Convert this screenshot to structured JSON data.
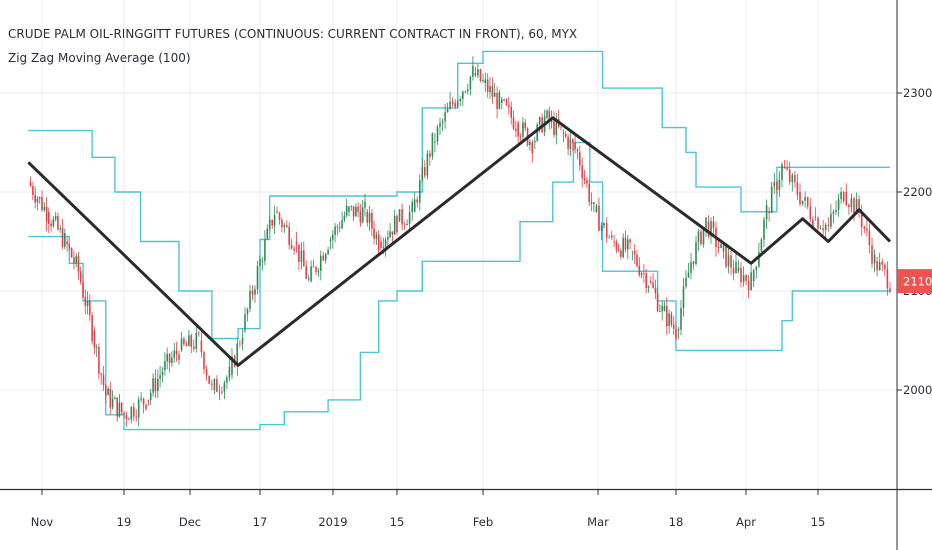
{
  "header": {
    "title": "CRUDE PALM OIL-RINGGITT FUTURES (CONTINUOUS: CURRENT CONTRACT IN FRONT), 60, MYX",
    "indicator": "Zig Zag Moving Average (100)"
  },
  "colors": {
    "background": "#ffffff",
    "grid": "#e9ecef",
    "band": "#4fc3d6",
    "zigzag": "#2b2b2b",
    "candle_up": "#2e8b57",
    "candle_down": "#e0404a",
    "price_tag": "#ef5350",
    "axis": "#2a2e39"
  },
  "chart_data": {
    "type": "line",
    "x_ticks": [
      "Nov",
      "19",
      "Dec",
      "17",
      "2019",
      "15",
      "Feb",
      "Mar",
      "18",
      "Apr",
      "15"
    ],
    "y_ticks": [
      2000,
      2100,
      2200,
      2300
    ],
    "ylim": [
      1940,
      2375
    ],
    "current_price": 2110,
    "current_price_label": "2110",
    "grid": true,
    "series": [
      {
        "kind": "zigzag",
        "points": [
          [
            "Oct 29",
            2230
          ],
          [
            "Dec 12",
            2025
          ],
          [
            "Feb 18",
            2275
          ],
          [
            "Apr 2",
            2128
          ],
          [
            "Apr 12",
            2173
          ],
          [
            "Apr 17",
            2150
          ],
          [
            "Apr 23",
            2182
          ],
          [
            "Apr 29",
            2150
          ]
        ]
      },
      {
        "kind": "upper_band",
        "points": [
          [
            "Oct 29",
            2262
          ],
          [
            "Nov 10",
            2262
          ],
          [
            "Nov 12",
            2235
          ],
          [
            "Nov 17",
            2200
          ],
          [
            "Nov 22",
            2150
          ],
          [
            "Nov 29",
            2100
          ],
          [
            "Dec 6",
            2052
          ],
          [
            "Dec 12",
            2062
          ],
          [
            "Dec 17",
            2152
          ],
          [
            "Dec 19",
            2196
          ],
          [
            "Dec 31",
            2196
          ],
          [
            "Jan 8",
            2196
          ],
          [
            "Jan 15",
            2200
          ],
          [
            "Jan 20",
            2285
          ],
          [
            "Jan 27",
            2330
          ],
          [
            "Feb 1",
            2342
          ],
          [
            "Feb 18",
            2342
          ],
          [
            "Feb 27",
            2342
          ],
          [
            "Mar 2",
            2305
          ],
          [
            "Mar 10",
            2305
          ],
          [
            "Mar 15",
            2265
          ],
          [
            "Mar 20",
            2240
          ],
          [
            "Mar 22",
            2205
          ],
          [
            "Mar 27",
            2205
          ],
          [
            "Mar 31",
            2180
          ],
          [
            "Apr 3",
            2180
          ],
          [
            "Apr 7",
            2225
          ],
          [
            "Apr 29",
            2225
          ]
        ]
      },
      {
        "kind": "lower_band",
        "points": [
          [
            "Oct 29",
            2155
          ],
          [
            "Nov 7",
            2128
          ],
          [
            "Nov 10",
            2090
          ],
          [
            "Nov 15",
            1975
          ],
          [
            "Nov 19",
            1960
          ],
          [
            "Dec 12",
            1960
          ],
          [
            "Dec 17",
            1965
          ],
          [
            "Dec 22",
            1978
          ],
          [
            "Dec 31",
            1990
          ],
          [
            "Jan 7",
            2038
          ],
          [
            "Jan 11",
            2090
          ],
          [
            "Jan 15",
            2100
          ],
          [
            "Jan 20",
            2130
          ],
          [
            "Jan 29",
            2130
          ],
          [
            "Feb 10",
            2170
          ],
          [
            "Feb 18",
            2210
          ],
          [
            "Feb 23",
            2250
          ],
          [
            "Feb 27",
            2210
          ],
          [
            "Mar 2",
            2120
          ],
          [
            "Mar 10",
            2120
          ],
          [
            "Mar 14",
            2090
          ],
          [
            "Mar 18",
            2040
          ],
          [
            "Apr 5",
            2040
          ],
          [
            "Apr 8",
            2070
          ],
          [
            "Apr 10",
            2100
          ],
          [
            "Apr 27",
            2100
          ],
          [
            "Apr 29",
            2098
          ]
        ]
      },
      {
        "kind": "price",
        "points": [
          [
            "Oct 29",
            2210
          ],
          [
            "Nov 2",
            2180
          ],
          [
            "Nov 6",
            2150
          ],
          [
            "Nov 9",
            2120
          ],
          [
            "Nov 12",
            2060
          ],
          [
            "Nov 15",
            1995
          ],
          [
            "Nov 19",
            1975
          ],
          [
            "Nov 23",
            1990
          ],
          [
            "Nov 26",
            2020
          ],
          [
            "Nov 29",
            2040
          ],
          [
            "Dec 3",
            2050
          ],
          [
            "Dec 6",
            2000
          ],
          [
            "Dec 10",
            2015
          ],
          [
            "Dec 13",
            2060
          ],
          [
            "Dec 17",
            2130
          ],
          [
            "Dec 20",
            2180
          ],
          [
            "Dec 24",
            2150
          ],
          [
            "Dec 27",
            2110
          ],
          [
            "Dec 31",
            2150
          ],
          [
            "Jan 4",
            2180
          ],
          [
            "Jan 8",
            2180
          ],
          [
            "Jan 11",
            2150
          ],
          [
            "Jan 15",
            2170
          ],
          [
            "Jan 18",
            2180
          ],
          [
            "Jan 22",
            2250
          ],
          [
            "Jan 26",
            2290
          ],
          [
            "Jan 30",
            2320
          ],
          [
            "Feb 1",
            2310
          ],
          [
            "Feb 5",
            2290
          ],
          [
            "Feb 9",
            2270
          ],
          [
            "Feb 13",
            2250
          ],
          [
            "Feb 16",
            2275
          ],
          [
            "Feb 20",
            2260
          ],
          [
            "Feb 24",
            2240
          ],
          [
            "Feb 28",
            2180
          ],
          [
            "Mar 4",
            2150
          ],
          [
            "Mar 8",
            2140
          ],
          [
            "Mar 12",
            2110
          ],
          [
            "Mar 15",
            2080
          ],
          [
            "Mar 18",
            2060
          ],
          [
            "Mar 21",
            2130
          ],
          [
            "Mar 24",
            2170
          ],
          [
            "Mar 27",
            2140
          ],
          [
            "Mar 30",
            2120
          ],
          [
            "Apr 2",
            2110
          ],
          [
            "Apr 5",
            2180
          ],
          [
            "Apr 8",
            2225
          ],
          [
            "Apr 11",
            2200
          ],
          [
            "Apr 14",
            2175
          ],
          [
            "Apr 17",
            2165
          ],
          [
            "Apr 20",
            2200
          ],
          [
            "Apr 23",
            2180
          ],
          [
            "Apr 26",
            2130
          ],
          [
            "Apr 29",
            2110
          ]
        ]
      }
    ]
  }
}
